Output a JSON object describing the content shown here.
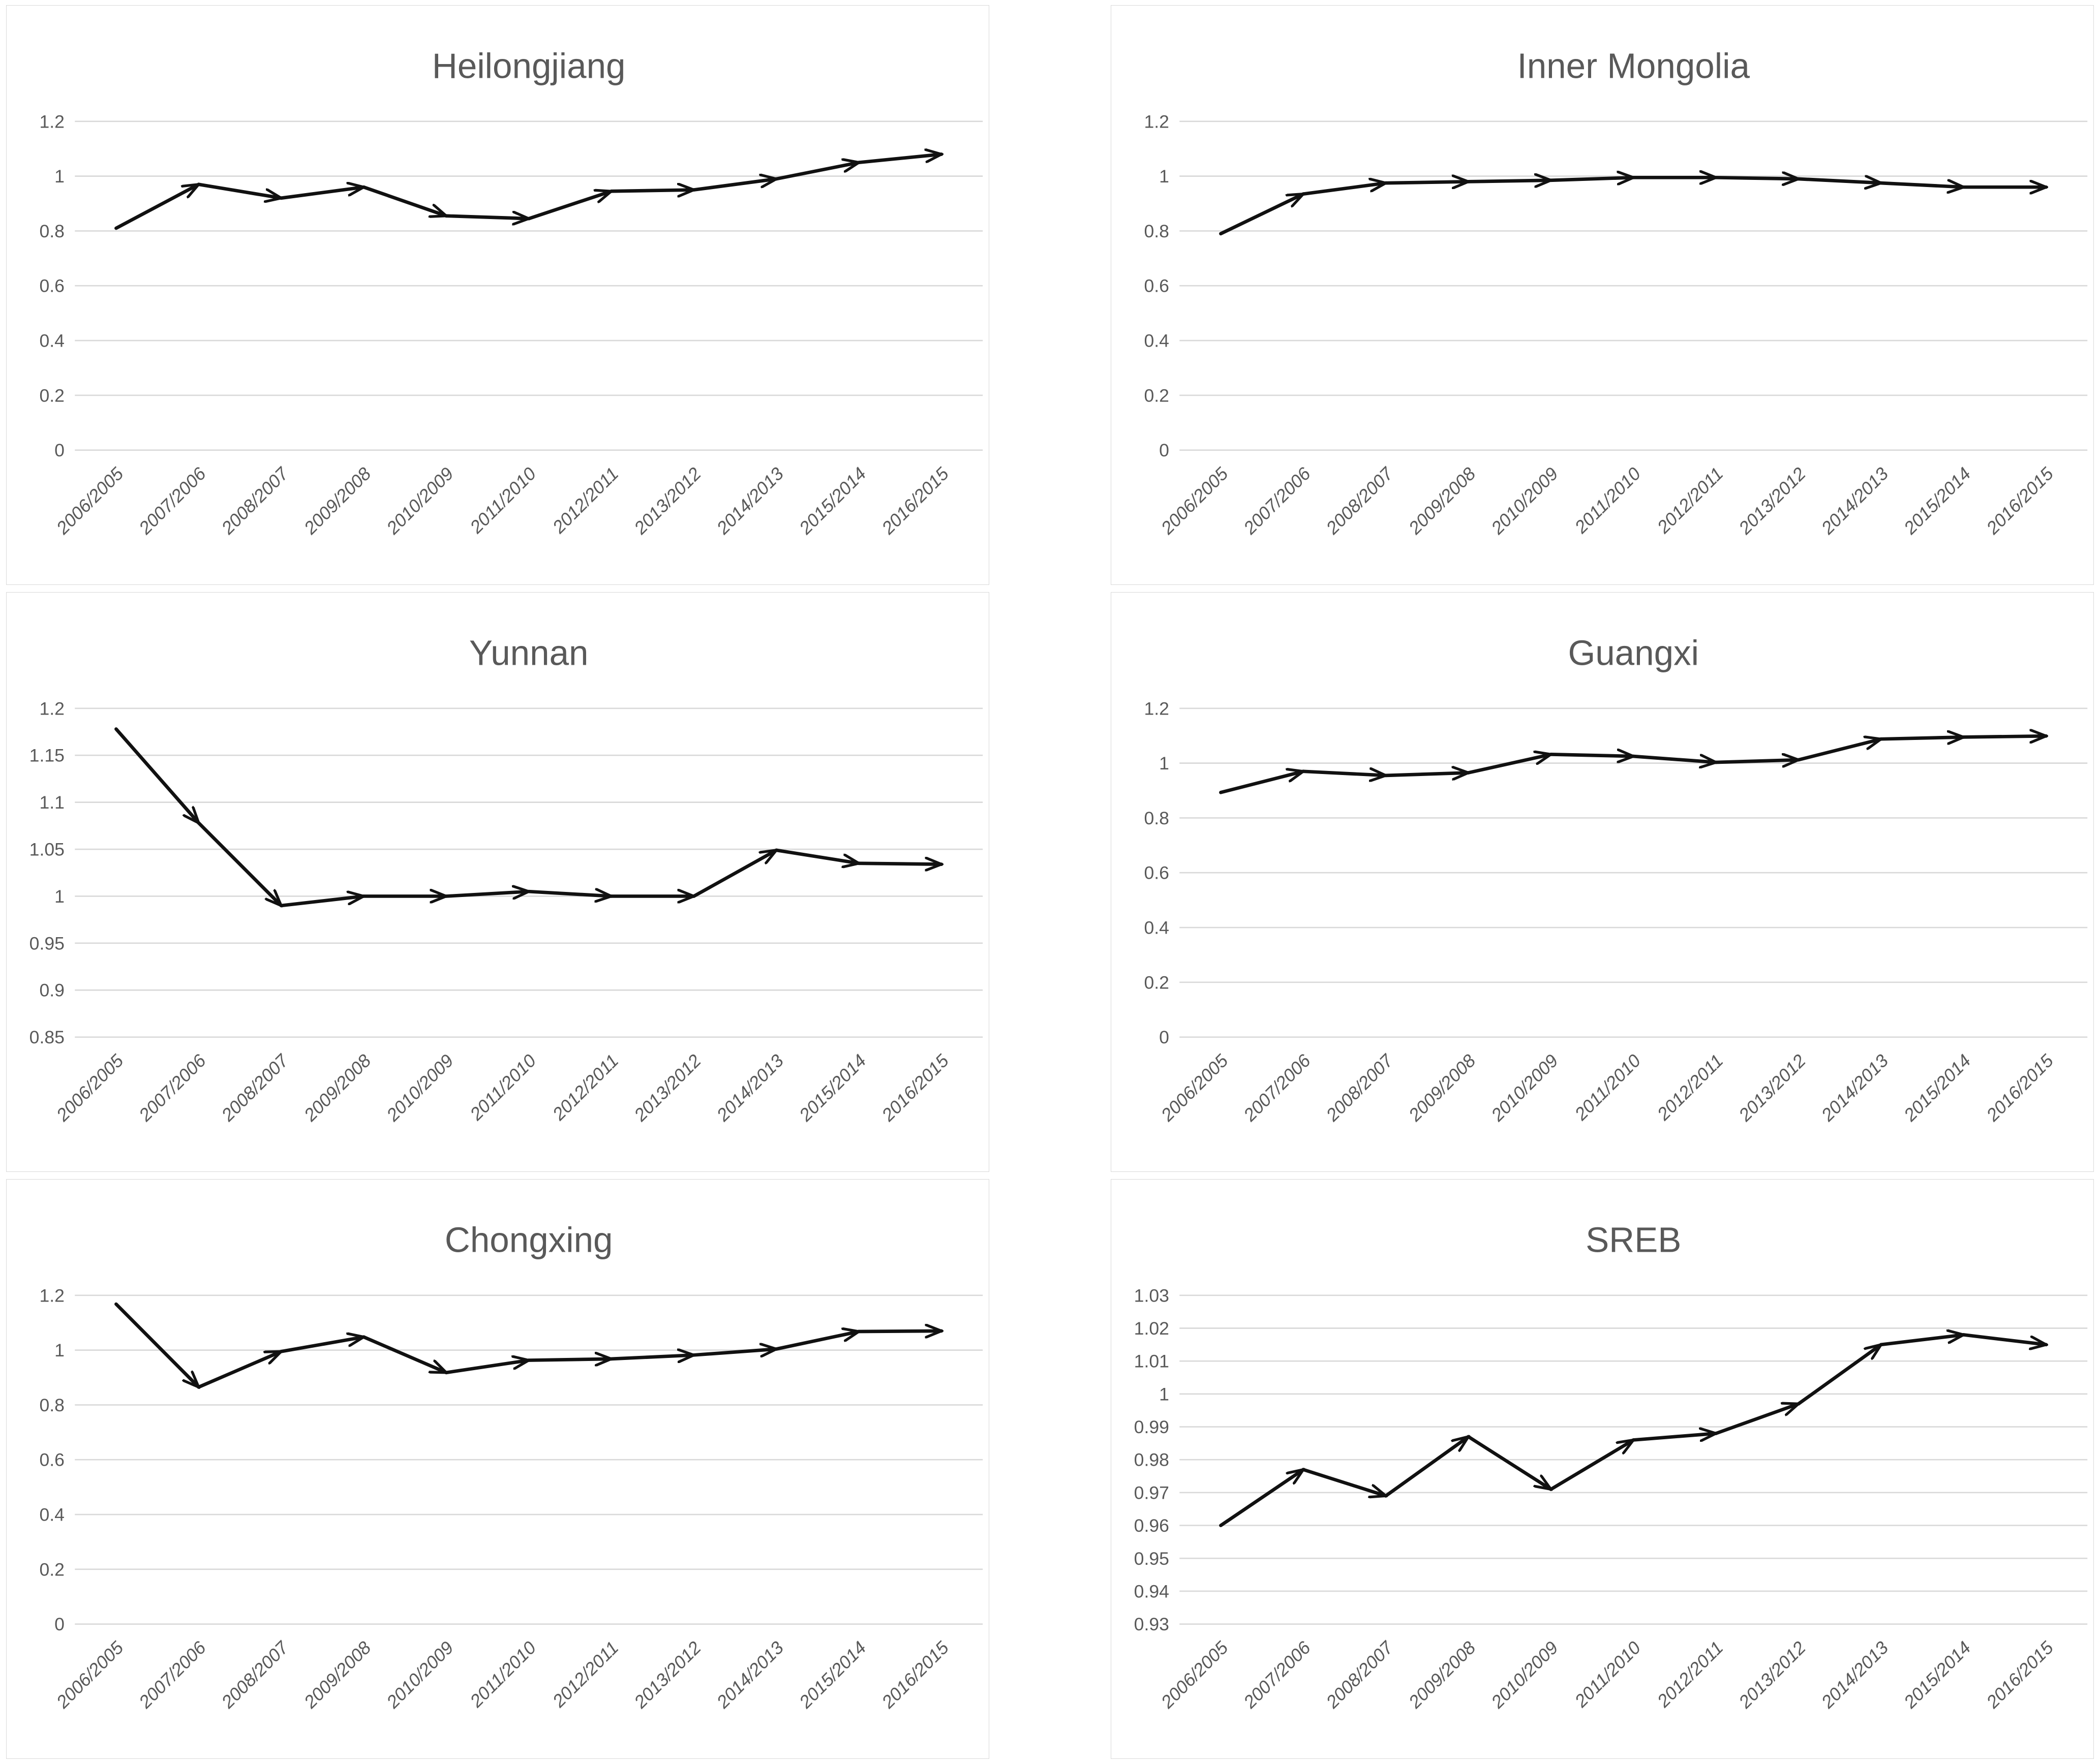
{
  "page": {
    "background": "#ffffff"
  },
  "colors": {
    "line": "#111111",
    "gridline": "#d9d9d9",
    "panel_border": "#d9d9d9",
    "text": "#595959"
  },
  "layout": {
    "rows": 3,
    "columns": 2,
    "legend": "none",
    "grid": "horizontal",
    "marker": "arrow"
  },
  "chart_data": [
    {
      "type": "line",
      "title": "Heilongjiang",
      "categories": [
        "2006/2005",
        "2007/2006",
        "2008/2007",
        "2009/2008",
        "2010/2009",
        "2011/2010",
        "2012/2011",
        "2013/2012",
        "2014/2013",
        "2015/2014",
        "2016/2015"
      ],
      "values": [
        0.81,
        0.97,
        0.92,
        0.96,
        0.855,
        0.845,
        0.945,
        0.95,
        0.99,
        1.05,
        1.08
      ],
      "ylim": [
        0,
        1.2
      ],
      "yticks": [
        0,
        0.2,
        0.4,
        0.6,
        0.8,
        1,
        1.2
      ],
      "ytick_labels": [
        "0",
        "0.2",
        "0.4",
        "0.6",
        "0.8",
        "1",
        "1.2"
      ],
      "xlabel": "",
      "ylabel": ""
    },
    {
      "type": "line",
      "title": "Inner Mongolia",
      "categories": [
        "2006/2005",
        "2007/2006",
        "2008/2007",
        "2009/2008",
        "2010/2009",
        "2011/2010",
        "2012/2011",
        "2013/2012",
        "2014/2013",
        "2015/2014",
        "2016/2015"
      ],
      "values": [
        0.79,
        0.935,
        0.975,
        0.98,
        0.985,
        0.995,
        0.995,
        0.99,
        0.975,
        0.96,
        0.96
      ],
      "ylim": [
        0,
        1.2
      ],
      "yticks": [
        0,
        0.2,
        0.4,
        0.6,
        0.8,
        1,
        1.2
      ],
      "ytick_labels": [
        "0",
        "0.2",
        "0.4",
        "0.6",
        "0.8",
        "1",
        "1.2"
      ],
      "xlabel": "",
      "ylabel": ""
    },
    {
      "type": "line",
      "title": "Yunnan",
      "categories": [
        "2006/2005",
        "2007/2006",
        "2008/2007",
        "2009/2008",
        "2010/2009",
        "2011/2010",
        "2012/2011",
        "2013/2012",
        "2014/2013",
        "2015/2014",
        "2016/2015"
      ],
      "values": [
        1.178,
        1.078,
        0.99,
        1.0,
        1.0,
        1.005,
        1.0,
        1.0,
        1.049,
        1.035,
        1.034
      ],
      "ylim": [
        0.85,
        1.2
      ],
      "yticks": [
        0.85,
        0.9,
        0.95,
        1,
        1.05,
        1.1,
        1.15,
        1.2
      ],
      "ytick_labels": [
        "0.85",
        "0.9",
        "0.95",
        "1",
        "1.05",
        "1.1",
        "1.15",
        "1.2"
      ],
      "xlabel": "",
      "ylabel": ""
    },
    {
      "type": "line",
      "title": "Guangxi",
      "categories": [
        "2006/2005",
        "2007/2006",
        "2008/2007",
        "2009/2008",
        "2010/2009",
        "2011/2010",
        "2012/2011",
        "2013/2012",
        "2014/2013",
        "2015/2014",
        "2016/2015"
      ],
      "values": [
        0.893,
        0.97,
        0.955,
        0.965,
        1.032,
        1.025,
        1.003,
        1.012,
        1.088,
        1.095,
        1.099
      ],
      "ylim": [
        0,
        1.2
      ],
      "yticks": [
        0,
        0.2,
        0.4,
        0.6,
        0.8,
        1,
        1.2
      ],
      "ytick_labels": [
        "0",
        "0.2",
        "0.4",
        "0.6",
        "0.8",
        "1",
        "1.2"
      ],
      "xlabel": "",
      "ylabel": ""
    },
    {
      "type": "line",
      "title": "Chongxing",
      "categories": [
        "2006/2005",
        "2007/2006",
        "2008/2007",
        "2009/2008",
        "2010/2009",
        "2011/2010",
        "2012/2011",
        "2013/2012",
        "2014/2013",
        "2015/2014",
        "2016/2015"
      ],
      "values": [
        1.168,
        0.865,
        0.995,
        1.048,
        0.918,
        0.963,
        0.968,
        0.982,
        1.004,
        1.068,
        1.07
      ],
      "ylim": [
        0,
        1.2
      ],
      "yticks": [
        0,
        0.2,
        0.4,
        0.6,
        0.8,
        1,
        1.2
      ],
      "ytick_labels": [
        "0",
        "0.2",
        "0.4",
        "0.6",
        "0.8",
        "1",
        "1.2"
      ],
      "xlabel": "",
      "ylabel": ""
    },
    {
      "type": "line",
      "title": "SREB",
      "categories": [
        "2006/2005",
        "2007/2006",
        "2008/2007",
        "2009/2008",
        "2010/2009",
        "2011/2010",
        "2012/2011",
        "2013/2012",
        "2014/2013",
        "2015/2014",
        "2016/2015"
      ],
      "values": [
        0.96,
        0.977,
        0.969,
        0.987,
        0.971,
        0.986,
        0.988,
        0.997,
        1.015,
        1.018,
        1.015
      ],
      "ylim": [
        0.93,
        1.03
      ],
      "yticks": [
        0.93,
        0.94,
        0.95,
        0.96,
        0.97,
        0.98,
        0.99,
        1,
        1.01,
        1.02,
        1.03
      ],
      "ytick_labels": [
        "0.93",
        "0.94",
        "0.95",
        "0.96",
        "0.97",
        "0.98",
        "0.99",
        "1",
        "1.01",
        "1.02",
        "1.03"
      ],
      "xlabel": "",
      "ylabel": ""
    }
  ]
}
